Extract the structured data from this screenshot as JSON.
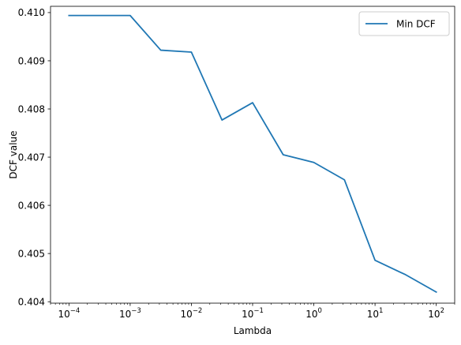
{
  "chart_data": {
    "type": "line",
    "xlabel": "Lambda",
    "ylabel": "DCF value",
    "xscale": "log",
    "xlim": [
      5e-05,
      200
    ],
    "ylim": [
      0.40397,
      0.41013
    ],
    "grid": false,
    "legend": {
      "placement": "top-right",
      "entries": [
        "Min DCF"
      ]
    },
    "x_ticks": [
      {
        "value": 0.0001,
        "base": "10",
        "exp": "−4"
      },
      {
        "value": 0.001,
        "base": "10",
        "exp": "−3"
      },
      {
        "value": 0.01,
        "base": "10",
        "exp": "−2"
      },
      {
        "value": 0.1,
        "base": "10",
        "exp": "−1"
      },
      {
        "value": 1,
        "base": "10",
        "exp": "0"
      },
      {
        "value": 10,
        "base": "10",
        "exp": "1"
      },
      {
        "value": 100,
        "base": "10",
        "exp": "2"
      }
    ],
    "y_ticks": [
      {
        "value": 0.404,
        "label": "0.404"
      },
      {
        "value": 0.405,
        "label": "0.405"
      },
      {
        "value": 0.406,
        "label": "0.406"
      },
      {
        "value": 0.407,
        "label": "0.407"
      },
      {
        "value": 0.408,
        "label": "0.408"
      },
      {
        "value": 0.409,
        "label": "0.409"
      },
      {
        "value": 0.41,
        "label": "0.410"
      }
    ],
    "series": [
      {
        "name": "Min DCF",
        "color": "#1f77b4",
        "x": [
          0.0001,
          0.000316,
          0.001,
          0.00316,
          0.01,
          0.0316,
          0.1,
          0.316,
          1,
          3.16,
          10,
          31.6,
          100
        ],
        "y": [
          0.40994,
          0.40994,
          0.40994,
          0.40922,
          0.40918,
          0.40777,
          0.40813,
          0.40705,
          0.40689,
          0.40653,
          0.40486,
          0.40456,
          0.4042
        ]
      }
    ]
  }
}
